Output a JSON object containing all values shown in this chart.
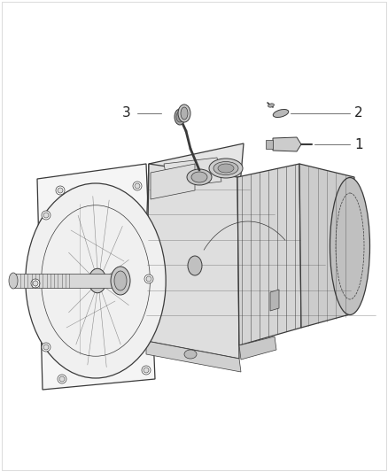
{
  "background_color": "#ffffff",
  "figsize": [
    4.38,
    5.33
  ],
  "dpi": 100,
  "line_color": "#3a3a3a",
  "line_color_light": "#888888",
  "text_color": "#222222",
  "label_1": "1",
  "label_2": "2",
  "label_3": "3",
  "label_fontsize": 11,
  "border_color": "#cccccc",
  "part_fill": "#d0d0d0",
  "part_fill_dark": "#a0a0a0",
  "part_fill_light": "#eeeeee"
}
